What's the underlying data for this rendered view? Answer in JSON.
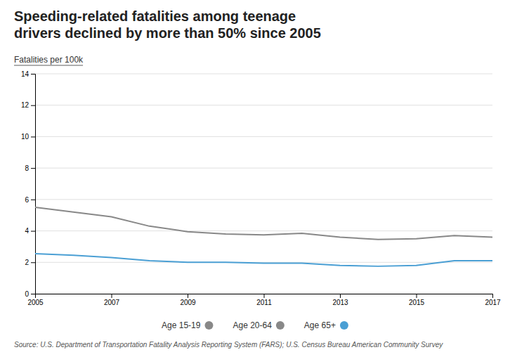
{
  "chart_data": {
    "type": "line",
    "title": "Speeding-related fatalities among teenage\ndrivers declined by more than 50% since 2005",
    "ylabel": "Fatalities per 100k",
    "source": "Source: U.S. Department of Transportation Fatality Analysis Reporting System (FARS); U.S. Census Bureau American Community Survey",
    "x": [
      2005,
      2006,
      2007,
      2008,
      2009,
      2010,
      2011,
      2012,
      2013,
      2014,
      2015,
      2016,
      2017
    ],
    "xlim": [
      2005,
      2017
    ],
    "xticks": [
      2005,
      2007,
      2009,
      2011,
      2013,
      2015,
      2017
    ],
    "ylim": [
      0,
      14
    ],
    "yticks": [
      0,
      2,
      4,
      6,
      8,
      10,
      12,
      14
    ],
    "grid": true,
    "legend": "bottom",
    "series": [
      {
        "name": "Age 15-19",
        "color": "#888888",
        "values": [
          5.5,
          5.2,
          4.9,
          4.3,
          3.95,
          3.8,
          3.75,
          3.85,
          3.6,
          3.45,
          3.5,
          3.7,
          3.6
        ]
      },
      {
        "name": "Age 20-64",
        "color": "#888888",
        "values": [
          null,
          null,
          null,
          null,
          null,
          null,
          null,
          null,
          null,
          null,
          null,
          null,
          null
        ]
      },
      {
        "name": "Age 65+",
        "color": "#4a9fd4",
        "values": [
          2.55,
          2.45,
          2.3,
          2.1,
          2.0,
          2.0,
          1.95,
          1.95,
          1.8,
          1.75,
          1.8,
          2.1,
          2.1
        ]
      }
    ]
  }
}
